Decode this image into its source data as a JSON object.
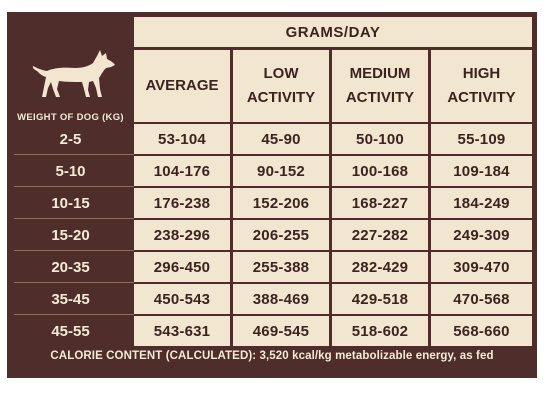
{
  "table": {
    "group_header": "GRAMS/DAY",
    "weight_header": "WEIGHT OF DOG (KG)",
    "columns": [
      {
        "line1": "AVERAGE",
        "line2": ""
      },
      {
        "line1": "LOW",
        "line2": "ACTIVITY"
      },
      {
        "line1": "MEDIUM",
        "line2": "ACTIVITY"
      },
      {
        "line1": "HIGH",
        "line2": "ACTIVITY"
      }
    ],
    "rows": [
      {
        "weight": "2-5",
        "values": [
          "53-104",
          "45-90",
          "50-100",
          "55-109"
        ]
      },
      {
        "weight": "5-10",
        "values": [
          "104-176",
          "90-152",
          "100-168",
          "109-184"
        ]
      },
      {
        "weight": "10-15",
        "values": [
          "176-238",
          "152-206",
          "168-227",
          "184-249"
        ]
      },
      {
        "weight": "15-20",
        "values": [
          "238-296",
          "206-255",
          "227-282",
          "249-309"
        ]
      },
      {
        "weight": "20-35",
        "values": [
          "296-450",
          "255-388",
          "282-429",
          "309-470"
        ]
      },
      {
        "weight": "35-45",
        "values": [
          "450-543",
          "388-469",
          "429-518",
          "470-568"
        ]
      },
      {
        "weight": "45-55",
        "values": [
          "543-631",
          "469-545",
          "518-602",
          "568-660"
        ]
      }
    ],
    "footer": "CALORIE CONTENT (CALCULATED): 3,520 kcal/kg metabolizable energy, as fed"
  },
  "icons": {
    "dog": "dog-silhouette-icon"
  },
  "colors": {
    "brown": "#4e2d2b",
    "cream": "#f3e6d0",
    "text_dark": "#3b2420",
    "text_light": "#f5ead7"
  }
}
